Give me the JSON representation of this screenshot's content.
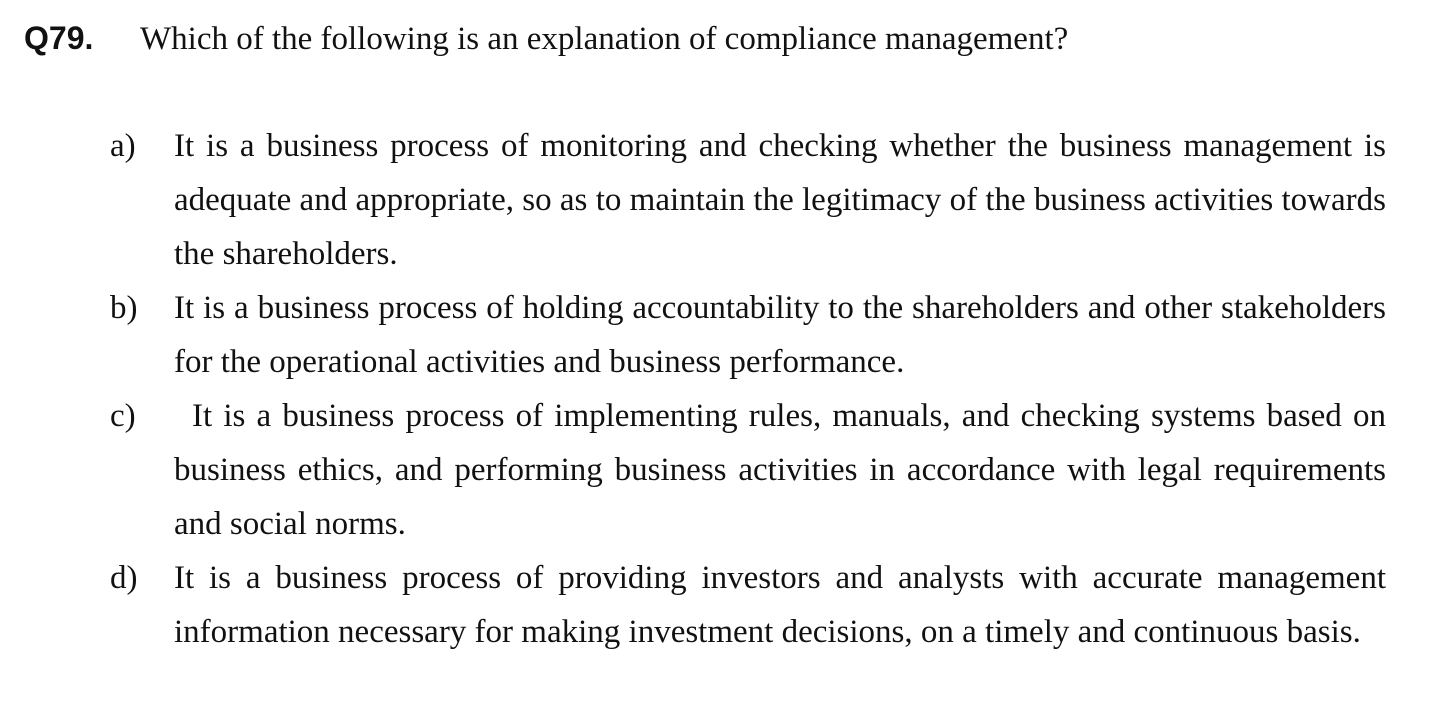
{
  "question": {
    "number": "Q79.",
    "text": "Which of the following is an explanation of compliance management?"
  },
  "options": [
    {
      "letter": "a)",
      "text": "It is a business process of monitoring and checking whether the business management is adequate and appropriate, so as to maintain the legitimacy of the business activities towards the shareholders."
    },
    {
      "letter": "b)",
      "text": "It is a business process of holding accountability to the shareholders and other stakeholders for the operational activities and business performance."
    },
    {
      "letter": "c)",
      "text": "It is a business process of implementing rules, manuals, and checking systems based on business ethics, and performing business activities in accordance with legal requirements and social norms."
    },
    {
      "letter": "d)",
      "text": "It is a business process of providing investors and analysts with accurate management information necessary for making investment decisions, on a timely and continuous basis."
    }
  ]
}
